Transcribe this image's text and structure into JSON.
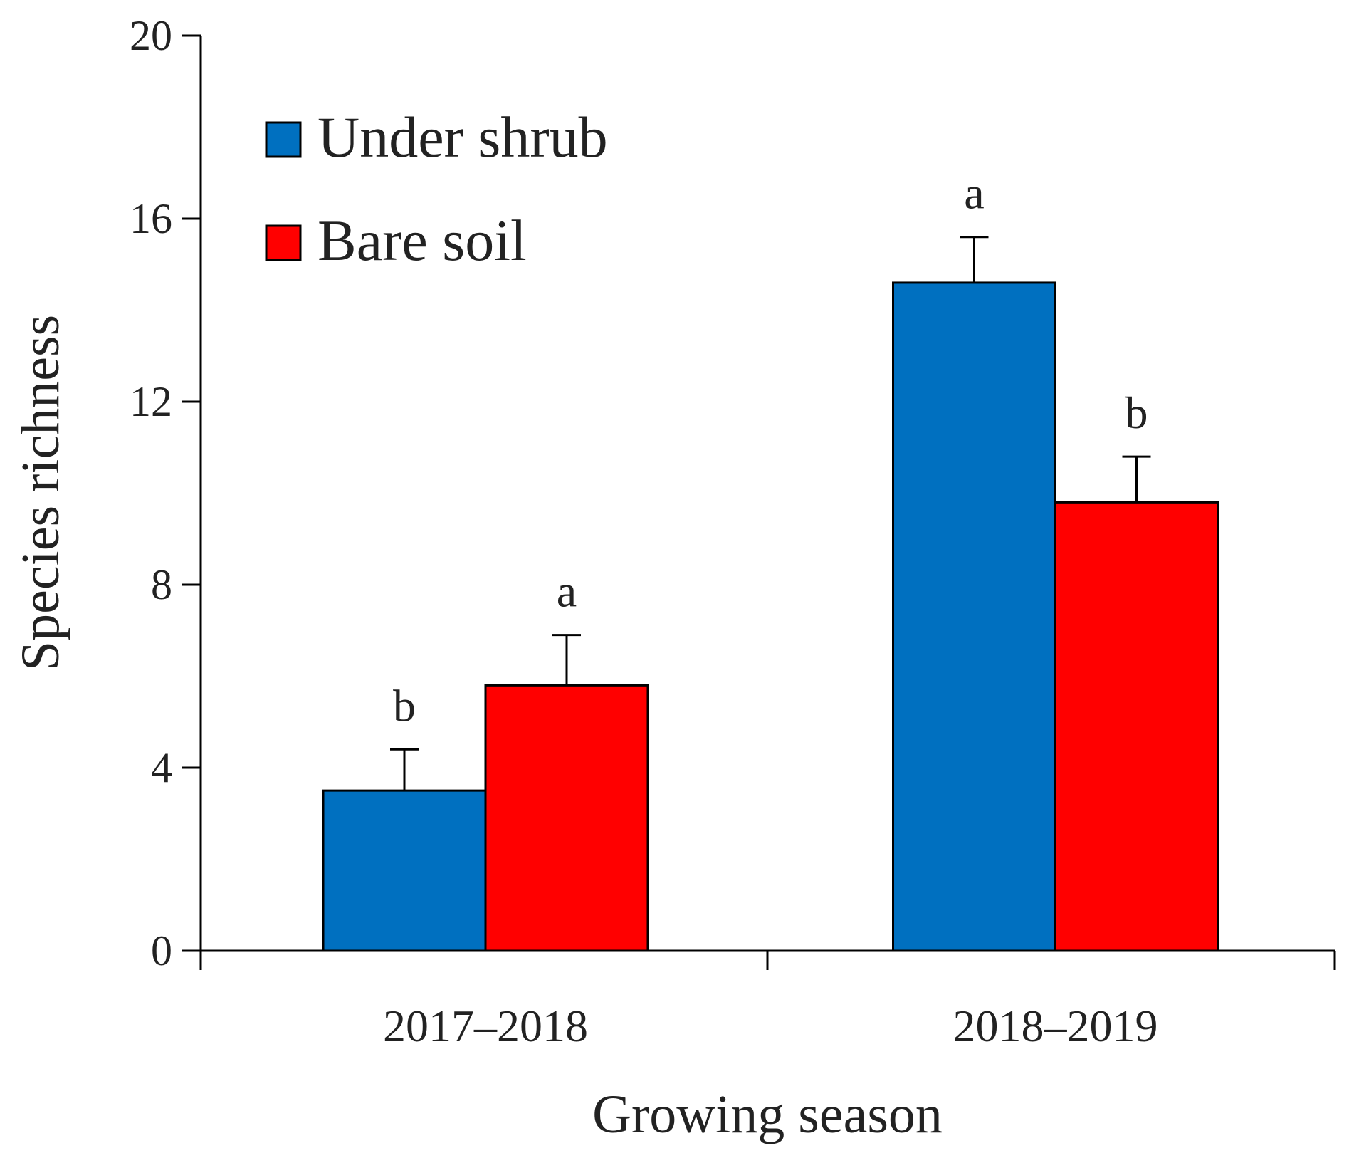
{
  "chart_data": {
    "type": "bar",
    "xlabel": "Growing season",
    "ylabel": "Species richness",
    "ylim": [
      0,
      20
    ],
    "yticks": [
      "0",
      "4",
      "8",
      "12",
      "16",
      "20"
    ],
    "categories": [
      "2017–2018",
      "2018–2019"
    ],
    "legend_position": "top-left",
    "grid": false,
    "series": [
      {
        "name": "Under shrub",
        "color": "#0070C0",
        "values": [
          3.5,
          14.6
        ],
        "errors": [
          0.9,
          1.0
        ],
        "significance": [
          "b",
          "a"
        ]
      },
      {
        "name": "Bare soil",
        "color": "#FF0000",
        "values": [
          5.8,
          9.8
        ],
        "errors": [
          1.1,
          1.0
        ],
        "significance": [
          "a",
          "b"
        ]
      }
    ]
  }
}
